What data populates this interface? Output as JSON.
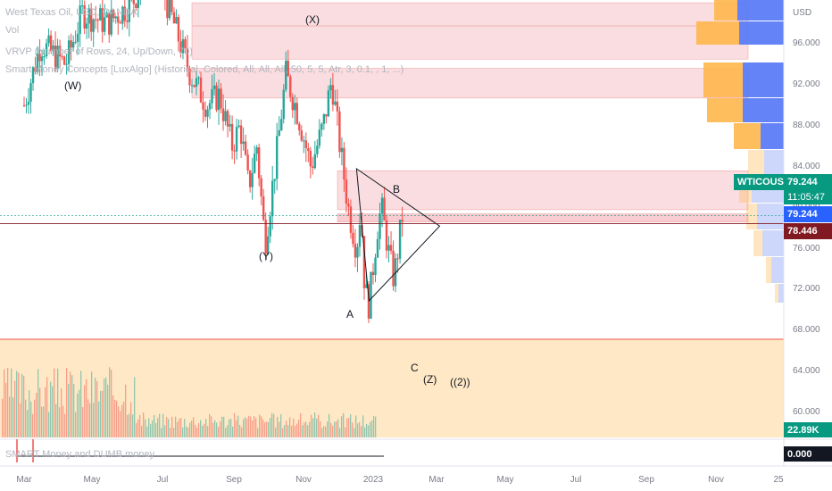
{
  "legend": {
    "symbol": "West Texas Oil, USD, OANDA",
    "vol": "Vol",
    "vrvp": "VRVP (Number of Rows, 24, Up/Down, 70)",
    "smc": "Smart Money Concepts [LuxAlgo] (Historical, Colored, All, All, All, 50, 5, 5, Atr, 3, 0.1, , 1, ...)",
    "smart_money": "SMART Money and DUMB money"
  },
  "currency": "USD",
  "badges": {
    "symbol_label": "WTICOUSD",
    "price": "79.244",
    "countdown": "11:05:47",
    "price2": "79.244",
    "price3": "78.446",
    "volume": "22.89K",
    "indicator": "0.000"
  },
  "colors": {
    "up": "#26a69a",
    "down": "#ef5350",
    "zone": "#f7c6cb",
    "volume_bg": "#ffe0b2",
    "accent_green": "#089981",
    "accent_blue": "#2962ff",
    "accent_dark_red": "#801922"
  },
  "waves": {
    "w": "(W)",
    "x": "(X)",
    "y": "(Y)",
    "a": "A",
    "b": "B",
    "c": "C",
    "z": "(Z)",
    "two": "((2))"
  },
  "chart_data": {
    "type": "candlestick",
    "y_ticks": [
      "96.000",
      "92.000",
      "88.000",
      "84.000",
      "80.000",
      "76.000",
      "72.000",
      "68.000",
      "64.000",
      "60.000"
    ],
    "x_ticks": [
      "Mar",
      "May",
      "Jul",
      "Sep",
      "Nov",
      "2023",
      "Mar",
      "May",
      "Jul",
      "Sep",
      "Nov",
      "25"
    ],
    "ylim": [
      56,
      100
    ],
    "current_price": 79.244,
    "last_close_line": 78.446,
    "zones": [
      {
        "from": 97.8,
        "to": 100
      },
      {
        "from": 94.5,
        "to": 97.7
      },
      {
        "from": 90.7,
        "to": 93.6
      },
      {
        "from": 79.8,
        "to": 83.6
      },
      {
        "from": 78.6,
        "to": 79.4
      }
    ],
    "triangle": [
      [
        2022.96,
        83.8
      ],
      [
        2023.16,
        78.2
      ],
      [
        2022.99,
        70.9
      ]
    ],
    "price_path": [
      [
        2022.16,
        90
      ],
      [
        2022.2,
        96
      ],
      [
        2022.26,
        94
      ],
      [
        2022.3,
        99
      ],
      [
        2022.36,
        98
      ],
      [
        2022.42,
        100
      ],
      [
        2022.47,
        104
      ],
      [
        2022.52,
        98
      ],
      [
        2022.56,
        93
      ],
      [
        2022.6,
        90
      ],
      [
        2022.63,
        91
      ],
      [
        2022.66,
        86
      ],
      [
        2022.68,
        88
      ],
      [
        2022.7,
        82
      ],
      [
        2022.72,
        86
      ],
      [
        2022.74,
        76.5
      ],
      [
        2022.77,
        86
      ],
      [
        2022.79,
        93
      ],
      [
        2022.82,
        89
      ],
      [
        2022.85,
        84
      ],
      [
        2022.88,
        88
      ],
      [
        2022.9,
        92.5
      ],
      [
        2022.92,
        86
      ],
      [
        2022.94,
        80
      ],
      [
        2022.96,
        76
      ],
      [
        2022.97,
        80
      ],
      [
        2022.98,
        72
      ],
      [
        2022.99,
        70.5
      ],
      [
        2023.01,
        78
      ],
      [
        2023.02,
        80
      ],
      [
        2023.04,
        75
      ],
      [
        2023.05,
        73
      ],
      [
        2023.06,
        76
      ],
      [
        2023.07,
        79.2
      ]
    ]
  }
}
